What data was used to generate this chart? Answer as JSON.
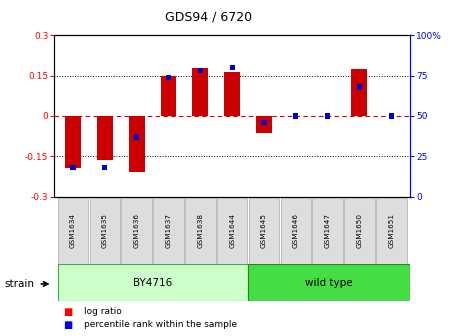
{
  "title": "GDS94 / 6720",
  "samples": [
    "GSM1634",
    "GSM1635",
    "GSM1636",
    "GSM1637",
    "GSM1638",
    "GSM1644",
    "GSM1645",
    "GSM1646",
    "GSM1647",
    "GSM1650",
    "GSM1651"
  ],
  "log_ratios": [
    -0.195,
    -0.165,
    -0.21,
    0.148,
    0.178,
    0.163,
    -0.065,
    0.0,
    0.0,
    0.173,
    0.0
  ],
  "percentile_ranks": [
    18,
    18,
    37,
    74,
    78,
    80,
    46,
    50,
    50,
    68,
    50
  ],
  "by4716_count": 6,
  "wildtype_count": 5,
  "ylim": [
    -0.3,
    0.3
  ],
  "yticks_left": [
    -0.3,
    -0.15,
    0,
    0.15,
    0.3
  ],
  "yticks_right_vals": [
    0,
    25,
    50,
    75,
    100
  ],
  "yticks_right_labels": [
    "0",
    "25",
    "50",
    "75",
    "100%"
  ],
  "bar_color": "#cc0000",
  "percentile_color": "#0000cc",
  "zero_line_color": "#cc0000",
  "dotted_line_color": "#000000",
  "bar_width": 0.5,
  "figsize": [
    4.69,
    3.36
  ],
  "dpi": 100,
  "by4716_color": "#ccffcc",
  "wildtype_color": "#44dd44",
  "sample_box_color": "#dddddd",
  "sample_box_edge": "#aaaaaa"
}
